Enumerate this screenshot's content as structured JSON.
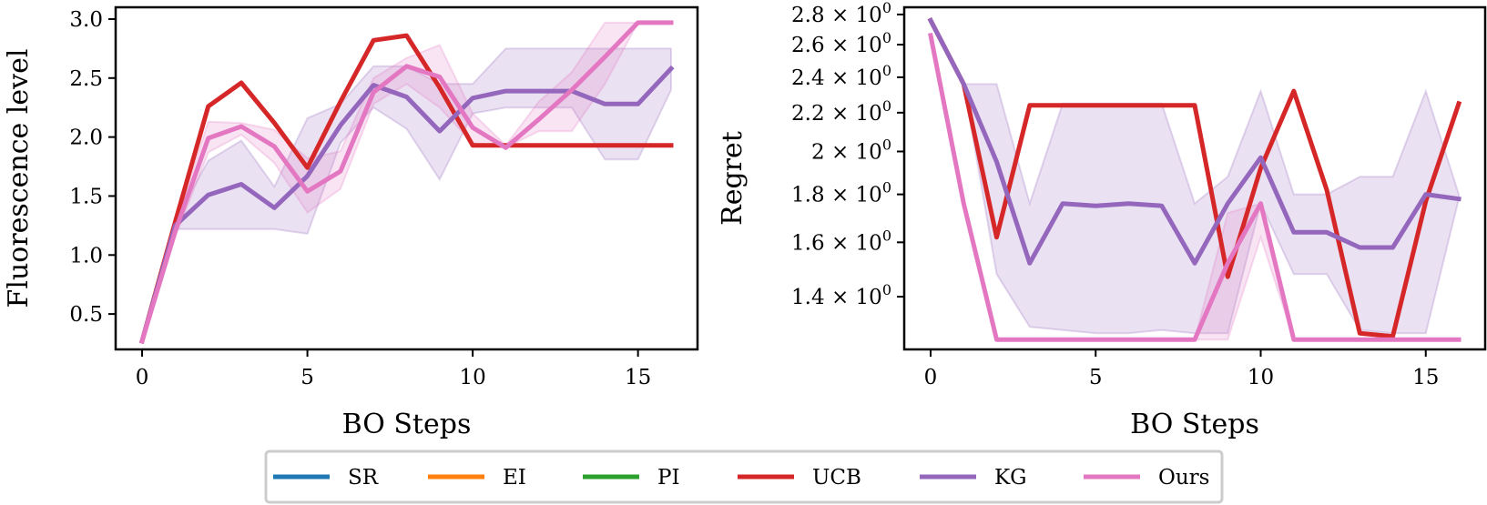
{
  "chart_data": [
    {
      "type": "line",
      "xlabel": "BO Steps",
      "ylabel": "Fluorescence level",
      "xlim": [
        -0.8,
        16.8
      ],
      "ylim": [
        0.2,
        3.1
      ],
      "xticks": [
        0,
        5,
        10,
        15
      ],
      "xtick_labels": [
        "0",
        "5",
        "10",
        "15"
      ],
      "yticks": [
        0.5,
        1.0,
        1.5,
        2.0,
        2.5,
        3.0
      ],
      "ytick_labels": [
        "0.5",
        "1.0",
        "1.5",
        "2.0",
        "2.5",
        "3.0"
      ],
      "grid": false,
      "x": [
        0,
        1,
        2,
        3,
        4,
        5,
        6,
        7,
        8,
        9,
        10,
        11,
        12,
        13,
        14,
        15,
        16
      ],
      "series": [
        {
          "name": "UCB",
          "color": "#d62728",
          "values": [
            0.27,
            1.28,
            2.26,
            2.46,
            2.12,
            1.74,
            2.3,
            2.82,
            2.86,
            2.42,
            1.93,
            1.93,
            1.93,
            1.93,
            1.93,
            1.93,
            1.93
          ]
        },
        {
          "name": "KG",
          "color": "#9467bd",
          "values": [
            0.27,
            1.25,
            1.51,
            1.6,
            1.4,
            1.67,
            2.1,
            2.44,
            2.34,
            2.05,
            2.33,
            2.39,
            2.39,
            2.39,
            2.28,
            2.28,
            2.58
          ],
          "band_lower": [
            0.27,
            1.22,
            1.22,
            1.22,
            1.22,
            1.18,
            1.95,
            2.25,
            2.07,
            1.64,
            2.2,
            2.25,
            2.25,
            2.25,
            1.81,
            1.81,
            2.4
          ],
          "band_upper": [
            0.27,
            1.3,
            1.8,
            1.97,
            1.58,
            2.16,
            2.28,
            2.6,
            2.6,
            2.45,
            2.45,
            2.75,
            2.75,
            2.75,
            2.75,
            2.75,
            2.75
          ]
        },
        {
          "name": "Ours",
          "color": "#e377c2",
          "values": [
            0.27,
            1.2,
            1.99,
            2.09,
            1.92,
            1.54,
            1.71,
            2.38,
            2.6,
            2.51,
            2.08,
            1.91,
            2.15,
            2.4,
            2.68,
            2.97,
            2.97
          ],
          "band_lower": [
            0.27,
            1.15,
            1.87,
            2.02,
            1.78,
            1.36,
            1.56,
            2.28,
            2.45,
            2.25,
            1.95,
            1.91,
            2.05,
            2.05,
            2.45,
            2.97,
            2.97
          ],
          "band_upper": [
            0.27,
            1.25,
            2.13,
            2.12,
            2.06,
            1.82,
            1.88,
            2.5,
            2.67,
            2.78,
            2.2,
            1.93,
            2.3,
            2.55,
            2.97,
            2.97,
            2.97
          ]
        }
      ]
    },
    {
      "type": "line",
      "xlabel": "BO Steps",
      "ylabel": "Regret",
      "yscale": "log",
      "xlim": [
        -0.8,
        16.8
      ],
      "ylim": [
        1.23,
        2.85
      ],
      "xticks": [
        0,
        5,
        10,
        15
      ],
      "xtick_labels": [
        "0",
        "5",
        "10",
        "15"
      ],
      "yticks": [
        1.4,
        1.6,
        1.8,
        2.0,
        2.2,
        2.4,
        2.6,
        2.8
      ],
      "ytick_mantissa": [
        "1.4",
        "1.6",
        "1.8",
        "2",
        "2.2",
        "2.4",
        "2.6",
        "2.8"
      ],
      "ytick_times": "×",
      "ytick_base": "10",
      "ytick_exponent": "0",
      "grid": false,
      "x": [
        0,
        1,
        2,
        3,
        4,
        5,
        6,
        7,
        8,
        9,
        10,
        11,
        12,
        13,
        14,
        15,
        16
      ],
      "series": [
        {
          "name": "UCB",
          "color": "#d62728",
          "values": [
            2.76,
            2.36,
            1.62,
            2.24,
            2.24,
            2.24,
            2.24,
            2.24,
            2.24,
            1.47,
            1.92,
            2.32,
            1.82,
            1.28,
            1.27,
            1.77,
            2.25
          ]
        },
        {
          "name": "KG",
          "color": "#9467bd",
          "values": [
            2.76,
            2.36,
            1.95,
            1.52,
            1.76,
            1.75,
            1.76,
            1.75,
            1.52,
            1.76,
            1.97,
            1.64,
            1.64,
            1.58,
            1.58,
            1.8,
            1.78
          ],
          "band_lower": [
            2.76,
            2.36,
            1.48,
            1.3,
            1.29,
            1.28,
            1.28,
            1.29,
            1.28,
            1.28,
            1.76,
            1.48,
            1.48,
            1.29,
            1.28,
            1.28,
            1.78
          ],
          "band_upper": [
            2.76,
            2.36,
            2.36,
            1.76,
            2.25,
            2.25,
            2.25,
            2.25,
            1.76,
            1.88,
            2.32,
            1.8,
            1.8,
            1.88,
            1.88,
            2.32,
            1.8
          ]
        },
        {
          "name": "Ours",
          "color": "#e377c2",
          "values": [
            2.66,
            1.76,
            1.26,
            1.26,
            1.26,
            1.26,
            1.26,
            1.26,
            1.26,
            1.52,
            1.76,
            1.26,
            1.26,
            1.26,
            1.26,
            1.26,
            1.26
          ],
          "band_lower": [
            2.66,
            1.76,
            1.26,
            1.26,
            1.26,
            1.26,
            1.26,
            1.26,
            1.26,
            1.26,
            1.62,
            1.26,
            1.26,
            1.26,
            1.26,
            1.26,
            1.26
          ],
          "band_upper": [
            2.66,
            1.76,
            1.26,
            1.26,
            1.26,
            1.26,
            1.26,
            1.26,
            1.26,
            1.72,
            1.76,
            1.26,
            1.26,
            1.26,
            1.26,
            1.26,
            1.26
          ]
        }
      ]
    }
  ],
  "legend": {
    "placement": "bottom-center",
    "entries": [
      {
        "name": "SR",
        "color": "#1f77b4"
      },
      {
        "name": "EI",
        "color": "#ff7f0e"
      },
      {
        "name": "PI",
        "color": "#2ca02c"
      },
      {
        "name": "UCB",
        "color": "#d62728"
      },
      {
        "name": "KG",
        "color": "#9467bd"
      },
      {
        "name": "Ours",
        "color": "#e377c2"
      }
    ]
  }
}
